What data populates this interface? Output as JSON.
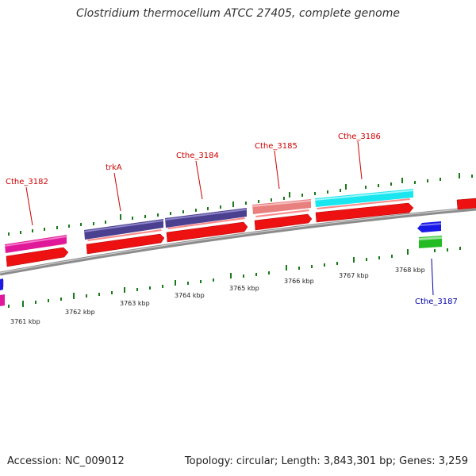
{
  "title": "Clostridium thermocellum ATCC 27405, complete genome",
  "footer": {
    "accession": "Accession: NC_009012",
    "stats": "Topology: circular; Length: 3,843,301 bp; Genes: 3,259"
  },
  "colors": {
    "backbone": "#8c8c8c",
    "label_top": "#cc0000",
    "label_bottom": "#0000aa",
    "tick": "#1a7a1a"
  },
  "scale_labels": [
    "3761 kbp",
    "3762 kbp",
    "3763 kbp",
    "3764 kbp",
    "3765 kbp",
    "3766 kbp",
    "3767 kbp",
    "3768 kbp"
  ],
  "genes": [
    {
      "name": "Cthe_3182",
      "strand": "forward",
      "color": "#e0189a"
    },
    {
      "name": "trkA",
      "strand": "forward",
      "color": "#4b3f8f"
    },
    {
      "name": "",
      "strand": "forward",
      "color": "#4b3f8f"
    },
    {
      "name": "Cthe_3184",
      "strand": "forward",
      "color": "#4b3f8f"
    },
    {
      "name": "Cthe_3185",
      "strand": "forward",
      "color": "#e88080"
    },
    {
      "name": "Cthe_3186",
      "strand": "forward",
      "color": "#19e6ee"
    },
    {
      "name": "Cthe_3187",
      "strand": "reverse",
      "color": "#1a1ae6"
    }
  ]
}
